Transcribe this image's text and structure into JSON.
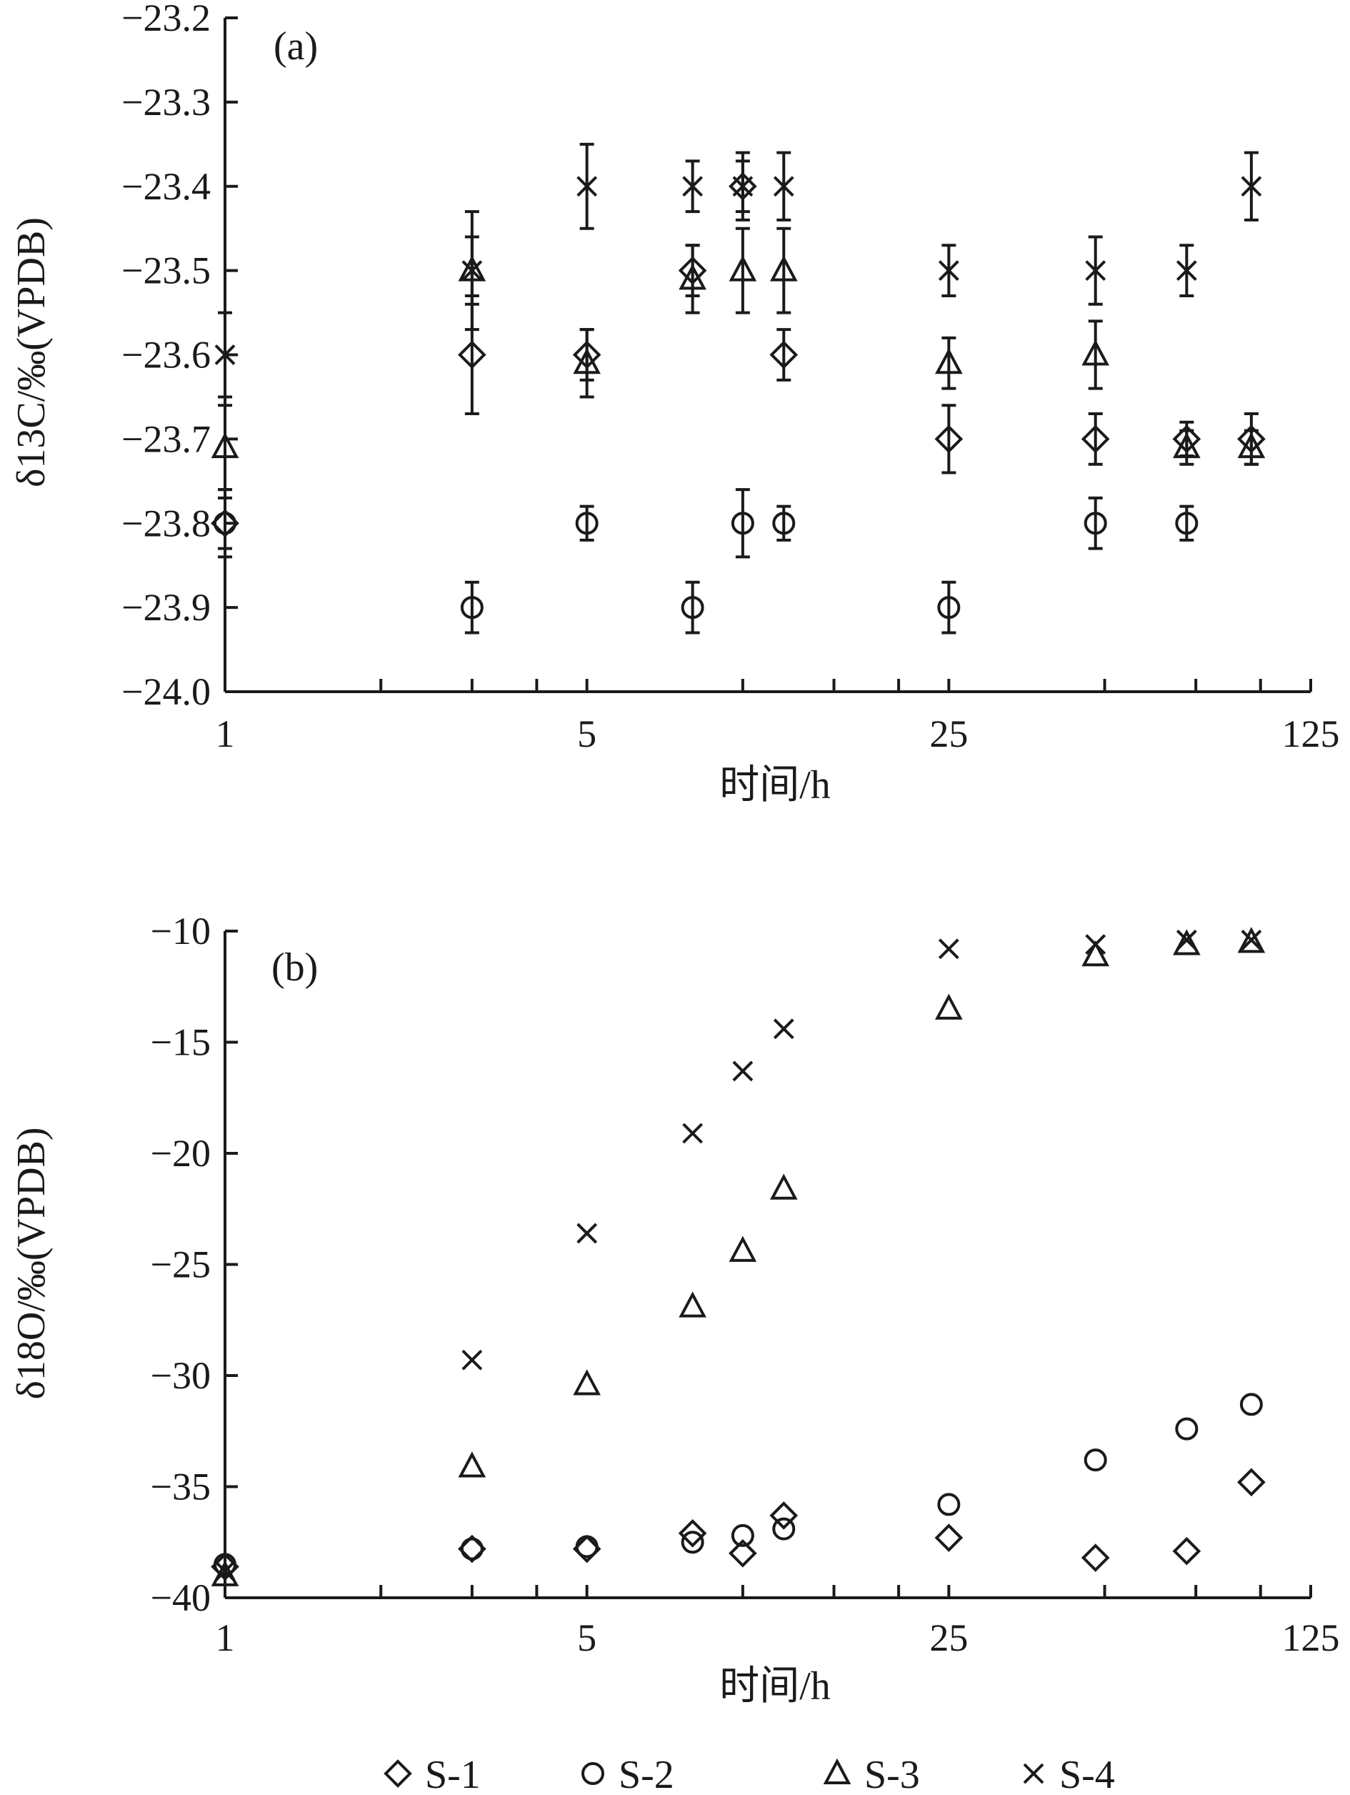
{
  "colors": {
    "ink": "#1a1a1a",
    "background": "#ffffff"
  },
  "legend": {
    "items": [
      {
        "label": "S-1",
        "marker": "diamond"
      },
      {
        "label": "S-2",
        "marker": "circle"
      },
      {
        "label": "S-3",
        "marker": "triangle"
      },
      {
        "label": "S-4",
        "marker": "cross"
      }
    ]
  },
  "chart_data": [
    {
      "panel_label": "(a)",
      "type": "scatter",
      "xlabel": "时间/h",
      "ylabel": "δ13C/‰(VPDB)",
      "x_scale": "log5",
      "x_ticks": [
        "1",
        "5",
        "25",
        "125"
      ],
      "xlim": [
        1,
        125
      ],
      "ylim": [
        -24.0,
        -23.2
      ],
      "y_ticks": [
        "−23.2",
        "−23.3",
        "−23.4",
        "−23.5",
        "−23.6",
        "−23.7",
        "−23.8",
        "−23.9",
        "−24.0"
      ],
      "y_tick_values": [
        -23.2,
        -23.3,
        -23.4,
        -23.5,
        -23.6,
        -23.7,
        -23.8,
        -23.9,
        -24.0
      ],
      "error_bars": true,
      "series": [
        {
          "name": "S-1",
          "marker": "diamond",
          "x": [
            1,
            3,
            5,
            8,
            10,
            12,
            25,
            48,
            72,
            96
          ],
          "y": [
            -23.8,
            -23.6,
            -23.6,
            -23.5,
            -23.4,
            -23.6,
            -23.7,
            -23.7,
            -23.7,
            -23.7
          ],
          "err": [
            0.03,
            0.07,
            0.03,
            0.03,
            0.03,
            0.03,
            0.04,
            0.03,
            0.02,
            0.03
          ]
        },
        {
          "name": "S-2",
          "marker": "circle",
          "x": [
            1,
            3,
            5,
            8,
            10,
            12,
            25,
            48,
            72
          ],
          "y": [
            -23.8,
            -23.9,
            -23.8,
            -23.9,
            -23.8,
            -23.8,
            -23.9,
            -23.8,
            -23.8
          ],
          "err": [
            0.04,
            0.03,
            0.02,
            0.03,
            0.04,
            0.02,
            0.03,
            0.03,
            0.02
          ]
        },
        {
          "name": "S-3",
          "marker": "triangle",
          "x": [
            1,
            3,
            5,
            8,
            10,
            12,
            25,
            48,
            72,
            96
          ],
          "y": [
            -23.71,
            -23.5,
            -23.61,
            -23.51,
            -23.5,
            -23.5,
            -23.61,
            -23.6,
            -23.71,
            -23.71
          ],
          "err": [
            0.05,
            0.04,
            0.04,
            0.04,
            0.05,
            0.05,
            0.03,
            0.04,
            0.02,
            0.02
          ]
        },
        {
          "name": "S-4",
          "marker": "cross",
          "x": [
            1,
            3,
            5,
            8,
            10,
            12,
            25,
            48,
            72,
            96
          ],
          "y": [
            -23.6,
            -23.5,
            -23.4,
            -23.4,
            -23.4,
            -23.4,
            -23.5,
            -23.5,
            -23.5,
            -23.4
          ],
          "err": [
            0.05,
            0.07,
            0.05,
            0.03,
            0.04,
            0.04,
            0.03,
            0.04,
            0.03,
            0.04
          ]
        }
      ]
    },
    {
      "panel_label": "(b)",
      "type": "scatter",
      "xlabel": "时间/h",
      "ylabel": "δ18O/‰(VPDB)",
      "x_scale": "log5",
      "x_ticks": [
        "1",
        "5",
        "25",
        "125"
      ],
      "xlim": [
        1,
        125
      ],
      "ylim": [
        -40,
        -10
      ],
      "y_ticks": [
        "−10",
        "−15",
        "−20",
        "−25",
        "−30",
        "−35",
        "−40"
      ],
      "y_tick_values": [
        -10,
        -15,
        -20,
        -25,
        -30,
        -35,
        -40
      ],
      "error_bars": false,
      "series": [
        {
          "name": "S-1",
          "marker": "diamond",
          "x": [
            1,
            3,
            5,
            8,
            10,
            12,
            25,
            48,
            72,
            96
          ],
          "y": [
            -38.6,
            -37.8,
            -37.8,
            -37.1,
            -38.0,
            -36.3,
            -37.3,
            -38.2,
            -37.9,
            -34.8
          ]
        },
        {
          "name": "S-2",
          "marker": "circle",
          "x": [
            1,
            3,
            5,
            8,
            10,
            12,
            25,
            48,
            72,
            96
          ],
          "y": [
            -38.5,
            -37.8,
            -37.7,
            -37.5,
            -37.2,
            -36.9,
            -35.8,
            -33.8,
            -32.4,
            -31.3
          ]
        },
        {
          "name": "S-3",
          "marker": "triangle",
          "x": [
            1,
            3,
            5,
            8,
            10,
            12,
            25,
            48,
            72,
            96
          ],
          "y": [
            -39.0,
            -34.1,
            -30.4,
            -26.9,
            -24.4,
            -21.6,
            -13.5,
            -11.1,
            -10.6,
            -10.5
          ]
        },
        {
          "name": "S-4",
          "marker": "cross",
          "x": [
            1,
            3,
            5,
            8,
            10,
            12,
            25,
            48,
            72,
            96
          ],
          "y": [
            -38.8,
            -29.3,
            -23.6,
            -19.1,
            -16.3,
            -14.4,
            -10.8,
            -10.6,
            -10.4,
            -10.4
          ]
        }
      ]
    }
  ]
}
